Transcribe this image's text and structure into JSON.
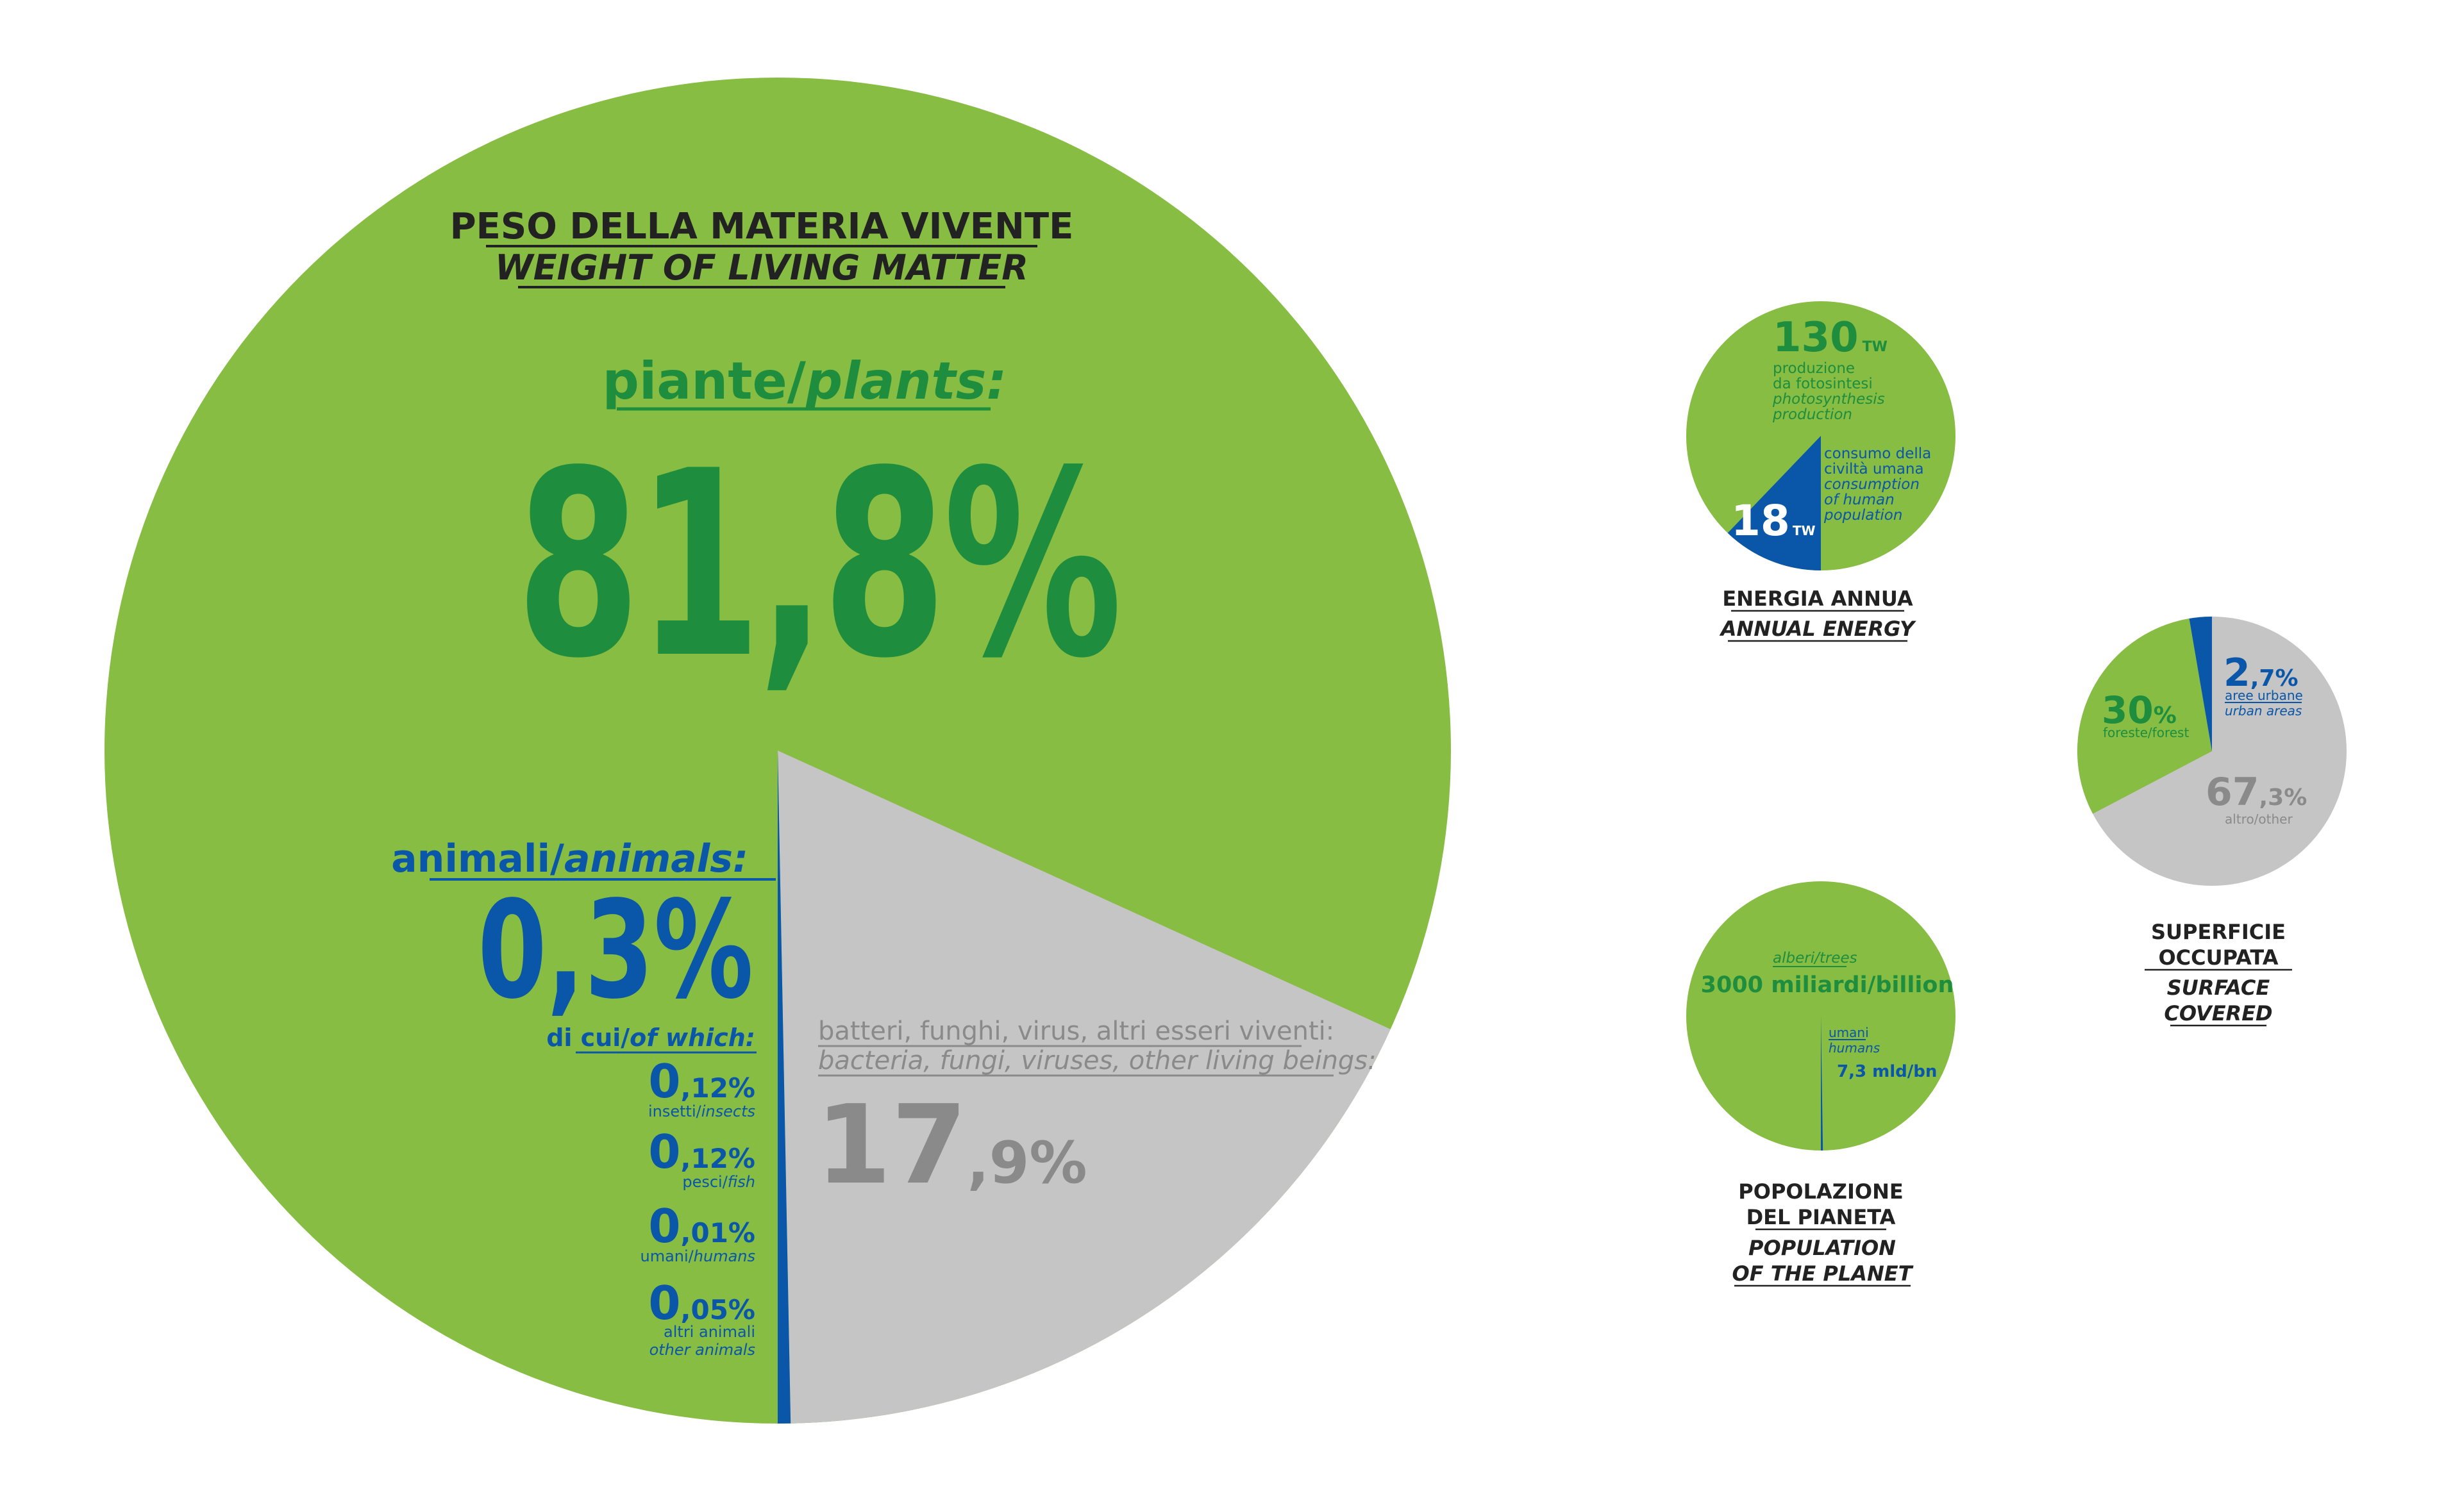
{
  "colors": {
    "green": "#86bd42",
    "dark_green": "#1e8e3e",
    "blue": "#0a56a8",
    "grey": "#c5c5c5",
    "dark_grey": "#8a8a8a",
    "black": "#222222"
  },
  "chart_data": [
    {
      "type": "pie",
      "title": "PESO DELLA MATERIA VIVENTE",
      "subtitle": "WEIGHT OF LIVING MATTER",
      "slices": [
        {
          "label_it": "piante/",
          "label_en": "plants:",
          "value": 81.8,
          "value_label": "81,8%",
          "color": "#86bd42"
        },
        {
          "label_it": "batteri, funghi, virus, altri esseri viventi:",
          "label_en": "bacteria, fungi, viruses, other living beings:",
          "value": 17.9,
          "value_label_int": "17",
          "value_label_dec": ",9%",
          "color": "#c5c5c5"
        },
        {
          "label_it": "animali/",
          "label_en": "animals:",
          "value": 0.3,
          "value_label": "0,3%",
          "color": "#0a56a8"
        }
      ],
      "breakdown_header_it": "di cui/",
      "breakdown_header_en": "of which:",
      "animal_breakdown": [
        {
          "value": 0.12,
          "value_int": "0",
          "value_dec": ",12%",
          "label_it": "insetti/",
          "label_en": "insects"
        },
        {
          "value": 0.12,
          "value_int": "0",
          "value_dec": ",12%",
          "label_it": "pesci/",
          "label_en": "fish"
        },
        {
          "value": 0.01,
          "value_int": "0",
          "value_dec": ",01%",
          "label_it": "umani/",
          "label_en": "humans"
        },
        {
          "value": 0.05,
          "value_int": "0",
          "value_dec": ",05%",
          "label_it": "altri animali",
          "label_en": "other animals"
        }
      ]
    },
    {
      "type": "pie",
      "title": "ENERGIA ANNUA",
      "subtitle": "ANNUAL ENERGY",
      "slices": [
        {
          "value": 130,
          "unit": "TW",
          "value_label": "130",
          "lines": [
            "produzione",
            "da fotosintesi",
            "photosynthesis",
            "production"
          ],
          "color": "#86bd42"
        },
        {
          "value": 18,
          "unit": "TW",
          "value_label": "18",
          "lines": [
            "consumo della",
            "civiltà umana",
            "consumption",
            "of human",
            "population"
          ],
          "color": "#0a56a8"
        }
      ]
    },
    {
      "type": "pie",
      "title_line1": "SUPERFICIE",
      "title_line2": "OCCUPATA",
      "subtitle_line1": "SURFACE",
      "subtitle_line2": "COVERED",
      "slices": [
        {
          "value": 2.7,
          "value_int": "2",
          "value_dec": ",7%",
          "label_it": "aree urbane",
          "label_en": "urban areas",
          "color": "#0a56a8"
        },
        {
          "value": 30,
          "value_int": "30",
          "value_dec": "%",
          "label": "foreste/forest",
          "color": "#86bd42"
        },
        {
          "value": 67.3,
          "value_int": "67",
          "value_dec": ",3%",
          "label": "altro/other",
          "color": "#c5c5c5"
        }
      ]
    },
    {
      "type": "pie",
      "title_line1": "POPOLAZIONE",
      "title_line2": "DEL PIANETA",
      "subtitle_line1": "POPULATION",
      "subtitle_line2": "OF THE PLANET",
      "slices": [
        {
          "value": 3000,
          "label": "alberi/trees",
          "value_label": "3000 miliardi/billion",
          "color": "#86bd42"
        },
        {
          "value": 7.3,
          "label_it": "umani",
          "label_en": "humans",
          "value_label": "7,3 mld/bn",
          "color": "#0a56a8"
        }
      ]
    }
  ]
}
